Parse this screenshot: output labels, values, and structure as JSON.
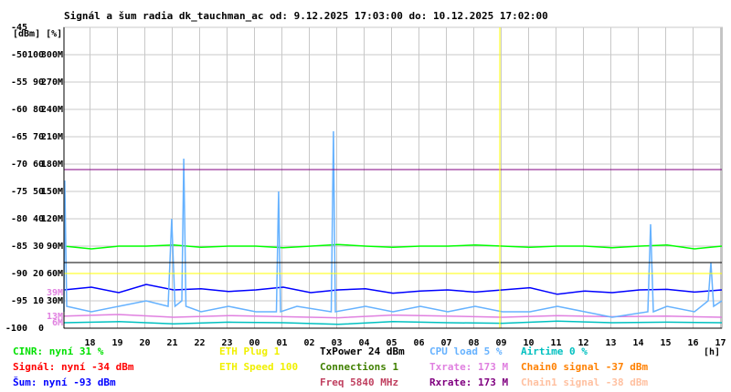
{
  "chart_data": {
    "type": "line",
    "title": "Signál a šum radia dk_tauchman_ac od: 9.12.2025 17:03:00 do: 10.12.2025 17:02:00",
    "ylabel": "[dBm] [%]",
    "xlabel": "[h]",
    "xlim": [
      0,
      24
    ],
    "xticks": [
      {
        "value": 0.95,
        "label": "18"
      },
      {
        "value": 1.95,
        "label": "19"
      },
      {
        "value": 2.95,
        "label": "20"
      },
      {
        "value": 3.95,
        "label": "21"
      },
      {
        "value": 4.95,
        "label": "22"
      },
      {
        "value": 5.95,
        "label": "23"
      },
      {
        "value": 6.95,
        "label": "00"
      },
      {
        "value": 7.95,
        "label": "01"
      },
      {
        "value": 8.95,
        "label": "02"
      },
      {
        "value": 9.95,
        "label": "03"
      },
      {
        "value": 10.95,
        "label": "04"
      },
      {
        "value": 11.95,
        "label": "05"
      },
      {
        "value": 12.95,
        "label": "06"
      },
      {
        "value": 13.95,
        "label": "07"
      },
      {
        "value": 14.95,
        "label": "08"
      },
      {
        "value": 15.95,
        "label": "09"
      },
      {
        "value": 16.95,
        "label": "10"
      },
      {
        "value": 17.95,
        "label": "11"
      },
      {
        "value": 18.95,
        "label": "12"
      },
      {
        "value": 19.95,
        "label": "13"
      },
      {
        "value": 20.95,
        "label": "14"
      },
      {
        "value": 21.95,
        "label": "15"
      },
      {
        "value": 22.95,
        "label": "16"
      },
      {
        "value": 23.95,
        "label": "17"
      }
    ],
    "ylim": [
      -100,
      -45
    ],
    "yticks": [
      -45,
      -50,
      -55,
      -60,
      -65,
      -70,
      -75,
      -80,
      -85,
      -90,
      -95,
      -100
    ],
    "y2lim": [
      0,
      110
    ],
    "y2ticks": [
      100,
      90,
      80,
      70,
      60,
      50,
      40,
      30,
      20,
      10,
      0
    ],
    "y3lim": [
      0,
      330
    ],
    "y3ticks": [
      {
        "value": 300,
        "label": "300M"
      },
      {
        "value": 270,
        "label": "270M"
      },
      {
        "value": 240,
        "label": "240M"
      },
      {
        "value": 210,
        "label": "210M"
      },
      {
        "value": 180,
        "label": "180M"
      },
      {
        "value": 150,
        "label": "150M"
      },
      {
        "value": 120,
        "label": "120M"
      },
      {
        "value": 90,
        "label": "90M"
      },
      {
        "value": 60,
        "label": "60M"
      },
      {
        "value": 30,
        "label": "30M"
      }
    ],
    "y3markers": [
      {
        "value": 39,
        "label": "39M"
      },
      {
        "value": 13,
        "label": "13M"
      },
      {
        "value": 6,
        "label": "6M"
      }
    ],
    "y3marker_color": "#e080e0",
    "grid": true,
    "hlines": [
      {
        "value": -71,
        "color": "#800080"
      },
      {
        "value": -88,
        "color": "#000000"
      },
      {
        "value": -90,
        "color": "#ffff00"
      }
    ],
    "vlines": [
      {
        "value": 15.9,
        "color": "#ffff00"
      }
    ],
    "series": [
      {
        "color": "#00ff00",
        "x": [
          0,
          1,
          2,
          3,
          4,
          5,
          6,
          7,
          8,
          9,
          10,
          11,
          12,
          13,
          14,
          15,
          16,
          17,
          18,
          19,
          20,
          21,
          22,
          23,
          24
        ],
        "values": [
          -85,
          -85.5,
          -85,
          -85,
          -84.8,
          -85.2,
          -85,
          -85,
          -85.3,
          -85,
          -84.7,
          -85,
          -85.2,
          -85,
          -85,
          -84.8,
          -85,
          -85.2,
          -85,
          -85,
          -85.3,
          -85,
          -84.8,
          -85.5,
          -85
        ]
      },
      {
        "color": "#0000ff",
        "x": [
          0,
          1,
          2,
          3,
          4,
          5,
          6,
          7,
          8,
          9,
          10,
          11,
          12,
          13,
          14,
          15,
          16,
          17,
          18,
          19,
          20,
          21,
          22,
          23,
          24
        ],
        "values": [
          -93,
          -92.5,
          -93.5,
          -92,
          -93,
          -92.8,
          -93.3,
          -93,
          -92.5,
          -93.5,
          -93,
          -92.8,
          -93.6,
          -93.2,
          -93,
          -93.4,
          -93,
          -92.6,
          -93.8,
          -93.2,
          -93.5,
          -93,
          -92.9,
          -93.4,
          -93
        ]
      },
      {
        "color": "#00c0c0",
        "x": [
          0,
          2,
          4,
          6,
          8,
          10,
          12,
          14,
          16,
          18,
          20,
          22,
          24
        ],
        "values": [
          -99,
          -98.8,
          -99.2,
          -98.9,
          -99,
          -99.3,
          -98.8,
          -99,
          -99.1,
          -98.7,
          -99,
          -98.9,
          -99
        ]
      },
      {
        "color": "#e080e0",
        "x": [
          0,
          2,
          4,
          6,
          8,
          10,
          12,
          14,
          16,
          18,
          20,
          22,
          24
        ],
        "values": [
          -97.8,
          -97.5,
          -98,
          -97.7,
          -97.9,
          -98.1,
          -97.6,
          -97.8,
          -98,
          -97.7,
          -97.9,
          -97.8,
          -98
        ]
      },
      {
        "color": "#66b2ff",
        "x": [
          0,
          0.03,
          0.1,
          1,
          2,
          3,
          3.8,
          3.93,
          4.05,
          4.3,
          4.37,
          4.45,
          5,
          6,
          7,
          7.75,
          7.83,
          7.9,
          8.5,
          9.75,
          9.83,
          9.9,
          11,
          12,
          13,
          14,
          15,
          16,
          17,
          18,
          19,
          20,
          21.3,
          21.4,
          21.5,
          22,
          23,
          23.5,
          23.6,
          23.7,
          24
        ],
        "values": [
          -97,
          -73,
          -96,
          -97,
          -96,
          -95,
          -96,
          -80,
          -96,
          -95,
          -69,
          -96,
          -97,
          -96,
          -97,
          -97,
          -75,
          -97,
          -96,
          -97,
          -64,
          -97,
          -96,
          -97,
          -96,
          -97,
          -96,
          -97,
          -97,
          -96,
          -97,
          -98,
          -97,
          -81,
          -97,
          -96,
          -97,
          -95,
          -88,
          -96,
          -95
        ]
      }
    ],
    "info": [
      [
        {
          "text": "CINR: nyní 31 %",
          "color": "#00e000"
        },
        {
          "text": "Signál: nyní -34 dBm",
          "color": "#ff0000"
        },
        {
          "text": "Šum: nyní -93 dBm",
          "color": "#0000ff"
        }
      ],
      [
        {
          "text": "ETH Plug 1",
          "color": "#f0f000"
        },
        {
          "text": "ETH Speed 100",
          "color": "#f0f000"
        }
      ],
      [
        {
          "text": "TxPower 24 dBm",
          "color": "#000000"
        },
        {
          "text": "Connections 1",
          "color": "#408000"
        },
        {
          "text": "Freq 5840 MHz",
          "color": "#c04060"
        }
      ],
      [
        {
          "text": "CPU load 5 %",
          "color": "#66b2ff"
        },
        {
          "text": "Txrate: 173 M",
          "color": "#e080e0"
        },
        {
          "text": "Rxrate: 173 M",
          "color": "#800080"
        }
      ],
      [
        {
          "text": "Airtime 0 %",
          "color": "#00c0c0"
        },
        {
          "text": "Chain0 signal -37 dBm",
          "color": "#ff8000"
        },
        {
          "text": "Chain1 signal -38 dBm",
          "color": "#ffc0a0"
        }
      ]
    ]
  }
}
